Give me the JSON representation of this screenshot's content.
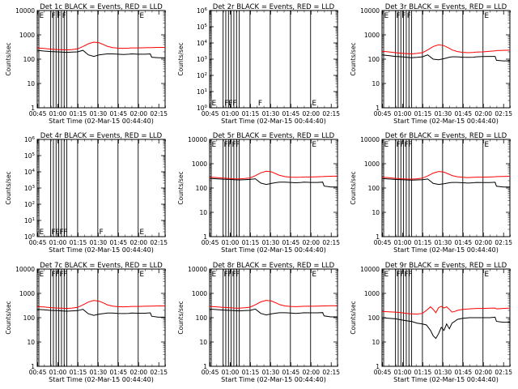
{
  "figure": {
    "xlabel": "Start Time (02-Mar-15 00:44:40)",
    "ylabel": "Counts/sec",
    "x_ticks": [
      "00:45",
      "01:00",
      "01:15",
      "01:30",
      "01:45",
      "02:00",
      "02:15"
    ],
    "colors": {
      "events": "#000000",
      "lld": "#ff0000"
    }
  },
  "chart_data": [
    {
      "type": "line",
      "title": "Det 1c  BLACK = Events, RED = LLD",
      "xlabel": "Start Time (02-Mar-15 00:44:40)",
      "ylabel": "Counts/sec",
      "xlim_minutes": [
        0,
        95
      ],
      "ylim": [
        1,
        10000
      ],
      "yscale": "log",
      "y_ticks": [
        "1",
        "10",
        "100",
        "1000",
        "10000"
      ],
      "flags": [
        "E",
        "F",
        "F",
        "F",
        "E"
      ],
      "series": [
        {
          "name": "Events",
          "color": "#000000",
          "x": [
            0,
            5,
            10,
            15,
            18,
            22,
            26,
            30,
            34,
            38,
            42,
            46,
            50,
            52,
            56,
            60,
            64,
            68,
            70,
            75,
            80,
            84,
            85,
            90,
            95
          ],
          "values": [
            230,
            215,
            205,
            200,
            195,
            190,
            195,
            200,
            230,
            150,
            130,
            150,
            160,
            165,
            165,
            160,
            155,
            160,
            165,
            160,
            160,
            165,
            120,
            115,
            115
          ]
        },
        {
          "name": "LLD",
          "color": "#ff0000",
          "x": [
            0,
            5,
            10,
            15,
            18,
            22,
            26,
            30,
            34,
            38,
            42,
            46,
            50,
            52,
            56,
            60,
            64,
            68,
            70,
            75,
            80,
            84,
            85,
            90,
            95
          ],
          "values": [
            290,
            275,
            260,
            250,
            245,
            240,
            250,
            265,
            330,
            430,
            500,
            470,
            380,
            340,
            300,
            285,
            280,
            285,
            290,
            290,
            295,
            300,
            300,
            305,
            305
          ]
        }
      ]
    },
    {
      "type": "line",
      "title": "Det 2r  BLACK = Events, RED = LLD",
      "xlabel": "Start Time (02-Mar-15 00:44:40)",
      "ylabel": "Counts/sec",
      "xlim_minutes": [
        0,
        95
      ],
      "ylim": [
        1,
        1000000
      ],
      "yscale": "log",
      "y_ticks": [
        "10^0",
        "10^1",
        "10^2",
        "10^3",
        "10^4",
        "10^5",
        "10^6"
      ],
      "flags": [
        "E",
        "F",
        "F",
        "F",
        "F",
        "E"
      ],
      "series": []
    },
    {
      "type": "line",
      "title": "Det 3r  BLACK = Events, RED = LLD",
      "xlabel": "Start Time (02-Mar-15 00:44:40)",
      "ylabel": "Counts/sec",
      "xlim_minutes": [
        0,
        95
      ],
      "ylim": [
        1,
        10000
      ],
      "yscale": "log",
      "y_ticks": [
        "1",
        "10",
        "100",
        "1000",
        "10000"
      ],
      "flags": [
        "E",
        "F",
        "F",
        "F",
        "E"
      ],
      "series": [
        {
          "name": "Events",
          "color": "#000000",
          "x": [
            0,
            5,
            10,
            15,
            18,
            22,
            26,
            30,
            34,
            38,
            42,
            46,
            50,
            52,
            56,
            60,
            64,
            68,
            70,
            75,
            80,
            84,
            85,
            90,
            95
          ],
          "values": [
            150,
            140,
            130,
            125,
            120,
            115,
            118,
            125,
            150,
            100,
            95,
            105,
            120,
            125,
            125,
            120,
            118,
            120,
            125,
            128,
            130,
            130,
            90,
            85,
            85
          ]
        },
        {
          "name": "LLD",
          "color": "#ff0000",
          "x": [
            0,
            5,
            10,
            15,
            18,
            22,
            26,
            30,
            34,
            38,
            42,
            46,
            50,
            52,
            56,
            60,
            64,
            68,
            70,
            75,
            80,
            84,
            85,
            90,
            95
          ],
          "values": [
            210,
            200,
            185,
            175,
            170,
            165,
            172,
            185,
            240,
            330,
            390,
            360,
            280,
            240,
            205,
            190,
            185,
            190,
            195,
            200,
            210,
            220,
            225,
            230,
            235
          ]
        }
      ]
    },
    {
      "type": "line",
      "title": "Det 4r  BLACK = Events, RED = LLD",
      "xlabel": "Start Time (02-Mar-15 00:44:40)",
      "ylabel": "Counts/sec",
      "xlim_minutes": [
        0,
        95
      ],
      "ylim": [
        1,
        1000000
      ],
      "yscale": "log",
      "y_ticks": [
        "10^0",
        "10^1",
        "10^2",
        "10^3",
        "10^4",
        "10^5",
        "10^6"
      ],
      "flags": [
        "E",
        "F",
        "F",
        "F",
        "F",
        "F",
        "E"
      ],
      "series": []
    },
    {
      "type": "line",
      "title": "Det 5r  BLACK = Events, RED = LLD",
      "xlabel": "Start Time (02-Mar-15 00:44:40)",
      "ylabel": "Counts/sec",
      "xlim_minutes": [
        0,
        95
      ],
      "ylim": [
        1,
        10000
      ],
      "yscale": "log",
      "y_ticks": [
        "1",
        "10",
        "100",
        "1000",
        "10000"
      ],
      "flags": [
        "E",
        "F",
        "F",
        "F",
        "F",
        "E"
      ],
      "series": [
        {
          "name": "Events",
          "color": "#000000",
          "x": [
            0,
            5,
            10,
            15,
            18,
            22,
            26,
            30,
            34,
            38,
            42,
            46,
            50,
            52,
            56,
            60,
            64,
            68,
            70,
            75,
            80,
            84,
            85,
            90,
            95
          ],
          "values": [
            250,
            240,
            230,
            225,
            220,
            215,
            220,
            225,
            240,
            160,
            140,
            155,
            170,
            175,
            175,
            170,
            165,
            170,
            175,
            170,
            170,
            175,
            120,
            110,
            110
          ]
        },
        {
          "name": "LLD",
          "color": "#ff0000",
          "x": [
            0,
            5,
            10,
            15,
            18,
            22,
            26,
            30,
            34,
            38,
            42,
            46,
            50,
            52,
            56,
            60,
            64,
            68,
            70,
            75,
            80,
            84,
            85,
            90,
            95
          ],
          "values": [
            280,
            270,
            255,
            245,
            240,
            238,
            245,
            260,
            320,
            420,
            490,
            460,
            370,
            330,
            295,
            280,
            275,
            280,
            285,
            285,
            290,
            295,
            300,
            305,
            310
          ]
        }
      ]
    },
    {
      "type": "line",
      "title": "Det 6r  BLACK = Events, RED = LLD",
      "xlabel": "Start Time (02-Mar-15 00:44:40)",
      "ylabel": "Counts/sec",
      "xlim_minutes": [
        0,
        95
      ],
      "ylim": [
        1,
        10000
      ],
      "yscale": "log",
      "y_ticks": [
        "1",
        "10",
        "100",
        "1000",
        "10000"
      ],
      "flags": [
        "E",
        "F",
        "F",
        "F",
        "F",
        "E"
      ],
      "series": [
        {
          "name": "Events",
          "color": "#000000",
          "x": [
            0,
            5,
            10,
            15,
            18,
            22,
            26,
            30,
            34,
            38,
            42,
            46,
            50,
            52,
            56,
            60,
            64,
            68,
            70,
            75,
            80,
            84,
            85,
            90,
            95
          ],
          "values": [
            245,
            235,
            225,
            220,
            215,
            210,
            215,
            220,
            235,
            155,
            140,
            150,
            165,
            170,
            170,
            165,
            160,
            165,
            170,
            168,
            168,
            172,
            118,
            110,
            110
          ]
        },
        {
          "name": "LLD",
          "color": "#ff0000",
          "x": [
            0,
            5,
            10,
            15,
            18,
            22,
            26,
            30,
            34,
            38,
            42,
            46,
            50,
            52,
            56,
            60,
            64,
            68,
            70,
            75,
            80,
            84,
            85,
            90,
            95
          ],
          "values": [
            275,
            265,
            250,
            240,
            235,
            232,
            240,
            255,
            315,
            410,
            480,
            450,
            365,
            325,
            290,
            275,
            270,
            275,
            280,
            280,
            285,
            290,
            295,
            300,
            305
          ]
        }
      ]
    },
    {
      "type": "line",
      "title": "Det 7c  BLACK = Events, RED = LLD",
      "xlabel": "Start Time (02-Mar-15 00:44:40)",
      "ylabel": "Counts/sec",
      "xlim_minutes": [
        0,
        95
      ],
      "ylim": [
        1,
        10000
      ],
      "yscale": "log",
      "y_ticks": [
        "1",
        "10",
        "100",
        "1000",
        "10000"
      ],
      "flags": [
        "E",
        "F",
        "F",
        "F",
        "F",
        "E"
      ],
      "series": [
        {
          "name": "Events",
          "color": "#000000",
          "x": [
            0,
            5,
            10,
            15,
            18,
            22,
            26,
            30,
            34,
            38,
            42,
            46,
            50,
            52,
            56,
            60,
            64,
            68,
            70,
            75,
            80,
            84,
            85,
            90,
            95
          ],
          "values": [
            220,
            210,
            200,
            195,
            190,
            185,
            190,
            195,
            220,
            145,
            125,
            140,
            150,
            155,
            155,
            150,
            148,
            150,
            155,
            152,
            152,
            158,
            115,
            105,
            105
          ]
        },
        {
          "name": "LLD",
          "color": "#ff0000",
          "x": [
            0,
            5,
            10,
            15,
            18,
            22,
            26,
            30,
            34,
            38,
            42,
            46,
            50,
            52,
            56,
            60,
            64,
            68,
            70,
            75,
            80,
            84,
            85,
            90,
            95
          ],
          "values": [
            285,
            275,
            260,
            250,
            245,
            240,
            250,
            265,
            335,
            440,
            510,
            480,
            385,
            340,
            300,
            285,
            280,
            285,
            290,
            290,
            295,
            300,
            300,
            305,
            305
          ]
        }
      ]
    },
    {
      "type": "line",
      "title": "Det 8r  BLACK = Events, RED = LLD",
      "xlabel": "Start Time (02-Mar-15 00:44:40)",
      "ylabel": "Counts/sec",
      "xlim_minutes": [
        0,
        95
      ],
      "ylim": [
        1,
        10000
      ],
      "yscale": "log",
      "y_ticks": [
        "1",
        "10",
        "100",
        "1000",
        "10000"
      ],
      "flags": [
        "E",
        "F",
        "F",
        "F",
        "F",
        "E"
      ],
      "series": [
        {
          "name": "Events",
          "color": "#000000",
          "x": [
            0,
            5,
            10,
            15,
            18,
            22,
            26,
            30,
            34,
            38,
            42,
            46,
            50,
            52,
            56,
            60,
            64,
            68,
            70,
            75,
            80,
            84,
            85,
            90,
            95
          ],
          "values": [
            225,
            215,
            205,
            200,
            195,
            190,
            195,
            200,
            225,
            150,
            130,
            145,
            155,
            160,
            160,
            155,
            150,
            155,
            160,
            158,
            158,
            162,
            118,
            108,
            108
          ]
        },
        {
          "name": "LLD",
          "color": "#ff0000",
          "x": [
            0,
            5,
            10,
            15,
            18,
            22,
            26,
            30,
            34,
            38,
            42,
            46,
            50,
            52,
            56,
            60,
            64,
            68,
            70,
            75,
            80,
            84,
            85,
            90,
            95
          ],
          "values": [
            290,
            280,
            265,
            255,
            250,
            245,
            255,
            270,
            340,
            445,
            515,
            485,
            390,
            345,
            305,
            290,
            285,
            290,
            295,
            295,
            300,
            305,
            305,
            310,
            310
          ]
        }
      ]
    },
    {
      "type": "line",
      "title": "Det 9r  BLACK = Events, RED = LLD",
      "xlabel": "Start Time (02-Mar-15 00:44:40)",
      "ylabel": "Counts/sec",
      "xlim_minutes": [
        0,
        95
      ],
      "ylim": [
        1,
        10000
      ],
      "yscale": "log",
      "y_ticks": [
        "1",
        "10",
        "100",
        "1000",
        "10000"
      ],
      "flags": [
        "E",
        "F",
        "F",
        "F",
        "F",
        "E"
      ],
      "series": [
        {
          "name": "Events",
          "color": "#000000",
          "x": [
            0,
            5,
            10,
            15,
            18,
            22,
            26,
            30,
            33,
            36,
            38,
            40,
            42,
            44,
            46,
            48,
            50,
            52,
            54,
            56,
            60,
            65,
            70,
            75,
            80,
            84,
            85,
            90,
            95
          ],
          "values": [
            100,
            95,
            90,
            80,
            75,
            70,
            60,
            55,
            50,
            30,
            18,
            14,
            22,
            40,
            30,
            55,
            35,
            60,
            70,
            85,
            95,
            100,
            100,
            100,
            100,
            105,
            70,
            65,
            65
          ]
        },
        {
          "name": "LLD",
          "color": "#ff0000",
          "x": [
            0,
            5,
            10,
            15,
            18,
            22,
            26,
            30,
            33,
            36,
            38,
            40,
            42,
            44,
            46,
            48,
            50,
            52,
            54,
            56,
            60,
            65,
            70,
            75,
            80,
            84,
            85,
            90,
            95
          ],
          "values": [
            180,
            175,
            170,
            160,
            150,
            145,
            140,
            150,
            200,
            280,
            220,
            160,
            260,
            290,
            250,
            280,
            220,
            170,
            180,
            200,
            220,
            230,
            240,
            240,
            245,
            250,
            230,
            240,
            250
          ]
        }
      ]
    }
  ]
}
